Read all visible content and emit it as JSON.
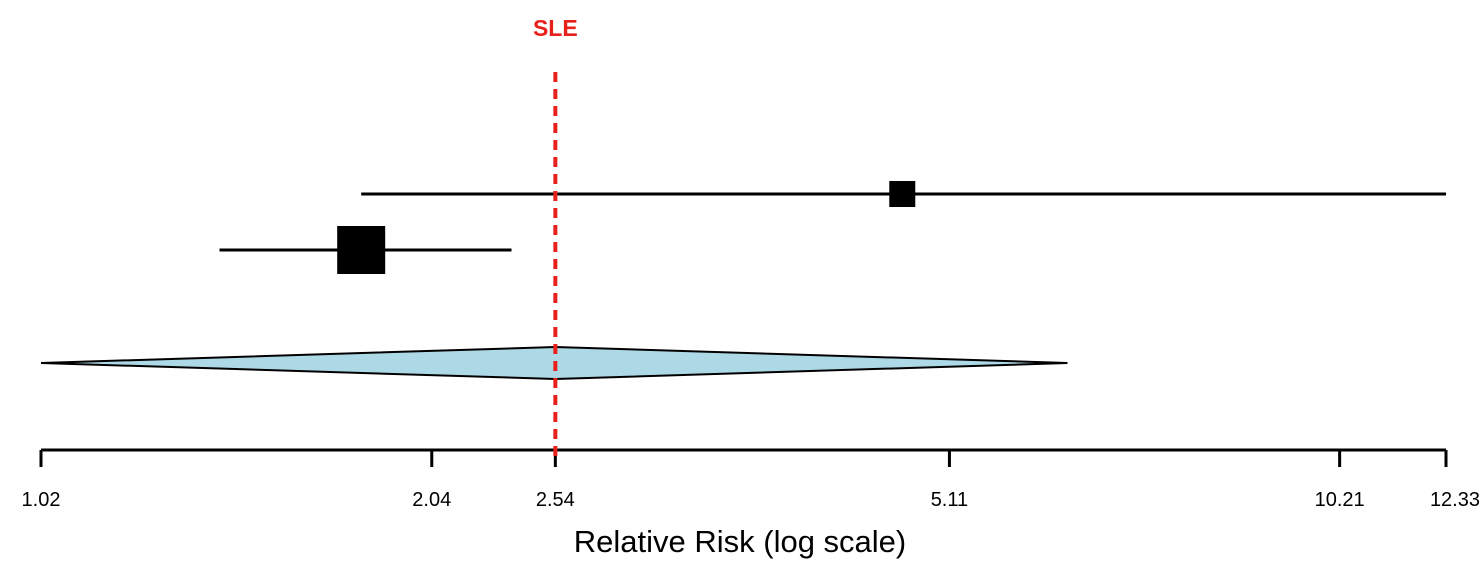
{
  "chart_data": {
    "type": "forest",
    "xlabel": "Relative Risk (log scale)",
    "x_scale": "log",
    "xlim": [
      1.02,
      12.33
    ],
    "ticks": [
      {
        "value": 1.02,
        "label": "1.02"
      },
      {
        "value": 2.04,
        "label": "2.04"
      },
      {
        "value": 2.54,
        "label": "2.54"
      },
      {
        "value": 5.11,
        "label": "5.11"
      },
      {
        "value": 10.21,
        "label": "10.21"
      },
      {
        "value": 12.33,
        "label": "12.33"
      }
    ],
    "reference_line": {
      "value": 2.54,
      "label": "SLE",
      "color": "#e8201c"
    },
    "studies": [
      {
        "estimate": 4.7,
        "ci_lower": 1.8,
        "ci_upper": 12.33,
        "weight": "small"
      },
      {
        "estimate": 1.8,
        "ci_lower": 1.4,
        "ci_upper": 2.35,
        "weight": "large"
      }
    ],
    "summary": {
      "estimate": 2.54,
      "ci_lower": 1.02,
      "ci_upper": 6.3,
      "color": "#add8e6"
    }
  }
}
